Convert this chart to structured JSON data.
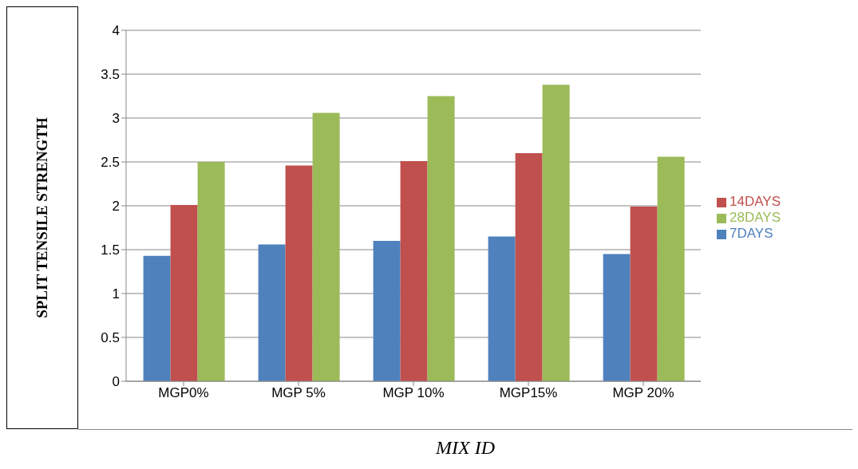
{
  "chart_data": {
    "type": "bar",
    "xlabel": "MIX ID",
    "ylabel": "SPLIT TENSILE STRENGTH",
    "categories": [
      "MGP0%",
      "MGP 5%",
      "MGP 10%",
      "MGP15%",
      "MGP 20%"
    ],
    "series": [
      {
        "name": "7DAYS",
        "color": "#4f81bd",
        "values": [
          1.43,
          1.56,
          1.6,
          1.65,
          1.45
        ]
      },
      {
        "name": "14DAYS",
        "color": "#c0504d",
        "values": [
          2.01,
          2.46,
          2.51,
          2.6,
          1.99
        ]
      },
      {
        "name": "28DAYS",
        "color": "#9bbb59",
        "values": [
          2.5,
          3.06,
          3.25,
          3.38,
          2.56
        ]
      }
    ],
    "ylim": [
      0,
      4
    ],
    "yticks": [
      0,
      0.5,
      1,
      1.5,
      2,
      2.5,
      3,
      3.5,
      4
    ],
    "grid": "y",
    "legend": "right"
  }
}
